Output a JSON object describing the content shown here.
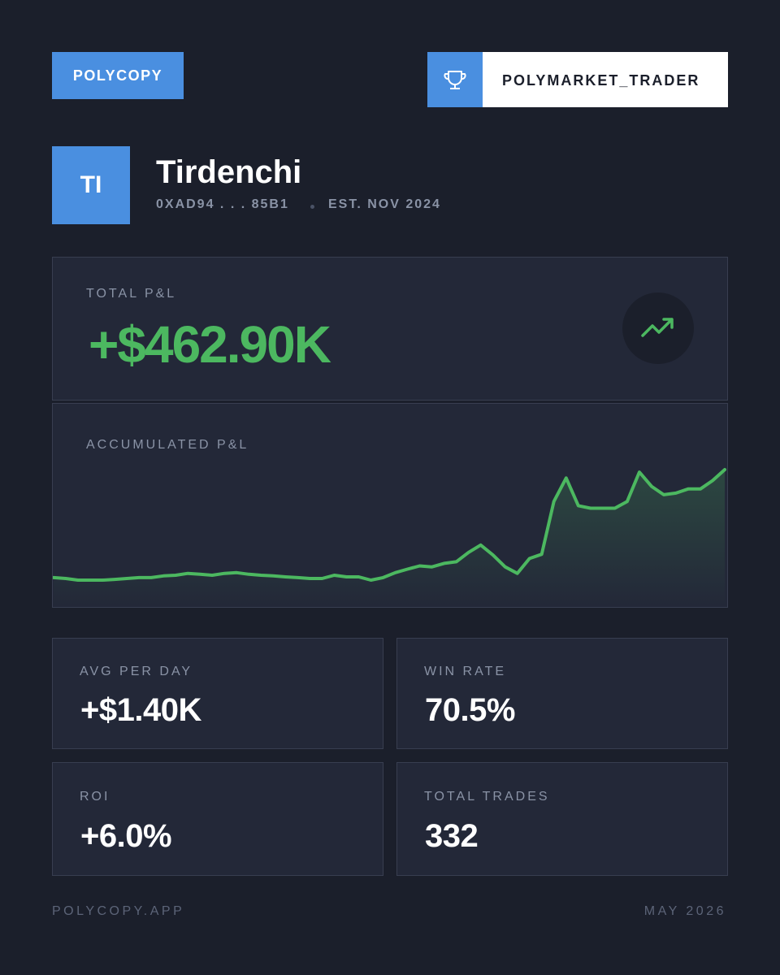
{
  "header": {
    "brand": "POLYCOPY",
    "badge": "POLYMARKET_TRADER"
  },
  "profile": {
    "initials": "TI",
    "name": "Tirdenchi",
    "address": "0XAD94 . . . 85B1",
    "established": "EST. NOV 2024"
  },
  "total_pnl": {
    "label": "TOTAL P&L",
    "value": "+$462.90K"
  },
  "chart_data": {
    "type": "line",
    "title": "ACCUMULATED P&L",
    "color": "#4cb860",
    "values": [
      4,
      0,
      -7,
      -7,
      -7,
      -4,
      0,
      4,
      4,
      11,
      14,
      22,
      18,
      14,
      22,
      25,
      18,
      14,
      11,
      7,
      4,
      0,
      0,
      14,
      7,
      7,
      -7,
      4,
      25,
      40,
      54,
      50,
      65,
      72,
      112,
      144,
      101,
      50,
      22,
      86,
      104,
      331,
      432,
      313,
      302,
      302,
      302,
      331,
      457,
      396,
      360,
      367,
      385,
      385,
      421,
      468
    ]
  },
  "stats": [
    {
      "label": "AVG PER DAY",
      "value": "+$1.40K"
    },
    {
      "label": "WIN RATE",
      "value": "70.5%"
    },
    {
      "label": "ROI",
      "value": "+6.0%"
    },
    {
      "label": "TOTAL TRADES",
      "value": "332"
    }
  ],
  "footer": {
    "site": "POLYCOPY.APP",
    "date": "MAY 2026"
  }
}
